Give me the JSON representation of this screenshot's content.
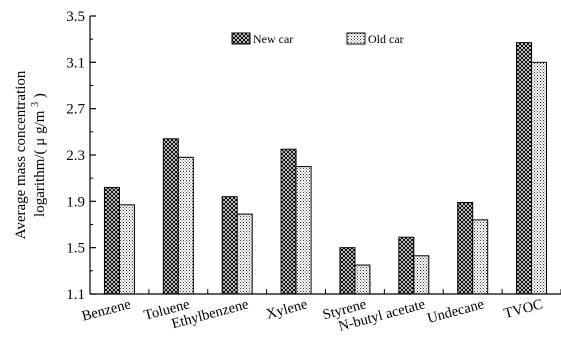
{
  "chart_data": {
    "type": "bar",
    "categories": [
      "Benzene",
      "Toluene",
      "Ethylbenzene",
      "Xylene",
      "Styrene",
      "N-butyl acetate",
      "Undecane",
      "TVOC"
    ],
    "series": [
      {
        "name": "New car",
        "values": [
          2.02,
          2.44,
          1.94,
          2.35,
          1.5,
          1.59,
          1.89,
          3.27
        ]
      },
      {
        "name": "Old car",
        "values": [
          1.87,
          2.28,
          1.79,
          2.2,
          1.35,
          1.43,
          1.74,
          3.1
        ]
      }
    ],
    "ylabel_line1": "Average mass concentration",
    "ylabel_line2": "logarithm/(",
    "ylabel_unit_base": "g/m",
    "ylabel_unit_exp": "3",
    "ylabel_close": ")",
    "ylim": [
      1.1,
      3.5
    ],
    "yticks": [
      "1.1",
      "1.5",
      "1.9",
      "2.3",
      "2.7",
      "3.1",
      "3.5"
    ],
    "legend_position": "top-center",
    "grid": false
  }
}
